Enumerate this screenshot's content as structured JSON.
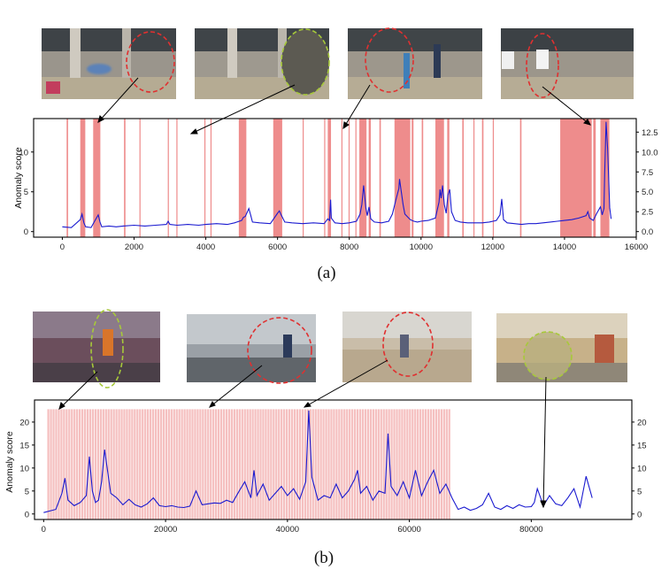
{
  "chart_data": [
    {
      "type": "line",
      "caption": "(a)",
      "ylabel": "Anomaly score",
      "xlim": [
        -800,
        16000
      ],
      "ylim": [
        -0.7,
        14.2
      ],
      "x_ticks": [
        0,
        2000,
        4000,
        6000,
        8000,
        10000,
        12000,
        14000,
        16000
      ],
      "y_ticks_left": [
        0,
        5,
        10
      ],
      "y_ticks_right": [
        "0.0",
        "2.5",
        "5.0",
        "7.5",
        "10.0",
        "12.5"
      ],
      "highlight_color": "#ee8c8c",
      "line_color": "#1a1ad0",
      "anomaly_intervals": [
        [
          120,
          160
        ],
        [
          500,
          640
        ],
        [
          860,
          1060
        ],
        [
          1720,
          1760
        ],
        [
          2150,
          2180
        ],
        [
          2940,
          2970
        ],
        [
          3180,
          3210
        ],
        [
          3960,
          3990
        ],
        [
          4130,
          4160
        ],
        [
          4920,
          5130
        ],
        [
          5880,
          6130
        ],
        [
          6700,
          6730
        ],
        [
          7300,
          7330
        ],
        [
          7400,
          7490
        ],
        [
          7780,
          7810
        ],
        [
          7980,
          8010
        ],
        [
          8170,
          8200
        ],
        [
          8280,
          8480
        ],
        [
          8540,
          8600
        ],
        [
          8840,
          8880
        ],
        [
          9260,
          9700
        ],
        [
          9740,
          9790
        ],
        [
          10020,
          10060
        ],
        [
          10400,
          10640
        ],
        [
          10730,
          10790
        ],
        [
          11150,
          11190
        ],
        [
          11460,
          11490
        ],
        [
          11700,
          11740
        ],
        [
          12000,
          12030
        ],
        [
          12760,
          12800
        ],
        [
          13880,
          14760
        ],
        [
          14800,
          14870
        ],
        [
          15000,
          15250
        ]
      ],
      "series": [
        {
          "x": [
            0,
            250,
            500,
            550,
            600,
            650,
            800,
            900,
            1000,
            1050,
            1100,
            1300,
            1500,
            1700,
            2000,
            2300,
            2600,
            2900,
            2950,
            3000,
            3200,
            3500,
            3800,
            4000,
            4300,
            4600,
            4800,
            5000,
            5050,
            5100,
            5200,
            5250,
            5300,
            5500,
            5800,
            6000,
            6050,
            6100,
            6200,
            6400,
            6700,
            7000,
            7300,
            7400,
            7450,
            7480,
            7500,
            7600,
            7800,
            8000,
            8200,
            8300,
            8350,
            8400,
            8430,
            8460,
            8500,
            8550,
            8600,
            8700,
            8900,
            9100,
            9200,
            9300,
            9380,
            9400,
            9440,
            9500,
            9550,
            9700,
            9800,
            9900,
            10000,
            10200,
            10400,
            10500,
            10530,
            10560,
            10600,
            10650,
            10700,
            10750,
            10800,
            10850,
            10950,
            11100,
            11300,
            11500,
            11700,
            11900,
            12100,
            12200,
            12250,
            12300,
            12400,
            12600,
            12800,
            13000,
            13200,
            13400,
            13600,
            13800,
            14000,
            14200,
            14400,
            14600,
            14650,
            14700,
            14800,
            14900,
            15000,
            15050,
            15100,
            15120,
            15160,
            15200,
            15260,
            15300
          ],
          "y": [
            0.6,
            0.5,
            1.5,
            2.2,
            1.1,
            0.6,
            0.5,
            1.3,
            2.1,
            1.2,
            0.6,
            0.7,
            0.6,
            0.7,
            0.8,
            0.7,
            0.8,
            0.9,
            1.3,
            0.9,
            0.8,
            0.9,
            0.8,
            0.9,
            1.0,
            0.9,
            1.1,
            1.4,
            1.8,
            1.9,
            2.9,
            2.1,
            1.2,
            1.1,
            1.0,
            2.3,
            2.6,
            2.1,
            1.2,
            1.1,
            1.0,
            1.1,
            1.0,
            1.6,
            1.4,
            4.0,
            1.7,
            1.1,
            1.0,
            1.1,
            1.3,
            2.2,
            3.4,
            5.8,
            4.5,
            3.0,
            2.0,
            3.1,
            1.6,
            1.2,
            1.1,
            1.3,
            2.2,
            4.0,
            5.4,
            6.6,
            5.3,
            3.4,
            2.2,
            1.5,
            1.3,
            1.2,
            1.3,
            1.4,
            1.7,
            3.7,
            5.3,
            4.2,
            5.8,
            3.4,
            2.3,
            4.6,
            5.3,
            2.5,
            1.4,
            1.2,
            1.1,
            1.1,
            1.1,
            1.2,
            1.4,
            2.1,
            4.1,
            1.5,
            1.1,
            1.0,
            0.9,
            1.0,
            1.0,
            1.1,
            1.2,
            1.3,
            1.4,
            1.5,
            1.7,
            2.0,
            2.5,
            1.7,
            1.4,
            2.3,
            3.1,
            2.1,
            2.9,
            7.2,
            13.8,
            10.5,
            3.0,
            1.6
          ]
        }
      ]
    },
    {
      "type": "line",
      "caption": "(b)",
      "ylabel": "Anomaly score",
      "xlim": [
        -1500,
        96500
      ],
      "ylim": [
        -1.2,
        24.8
      ],
      "x_ticks": [
        0,
        20000,
        40000,
        60000,
        80000
      ],
      "y_ticks_left": [
        0,
        5,
        10,
        15,
        20
      ],
      "y_ticks_right": [
        0,
        5,
        10,
        15,
        20
      ],
      "highlight_color": "#f5c0c0",
      "line_color": "#1a1ad0",
      "highlight_top_value": 22.8,
      "highlight_range": [
        600,
        66800
      ],
      "series": [
        {
          "x": [
            0,
            2000,
            3000,
            3500,
            4000,
            5000,
            6000,
            7000,
            7500,
            8000,
            8500,
            9000,
            9500,
            10000,
            11000,
            12000,
            13000,
            14000,
            15000,
            16000,
            17000,
            18000,
            19000,
            20000,
            21000,
            22000,
            23000,
            24000,
            25000,
            26000,
            27000,
            28000,
            29000,
            30000,
            31000,
            32000,
            33000,
            34000,
            34500,
            35000,
            36000,
            37000,
            38000,
            39000,
            40000,
            41000,
            42000,
            43000,
            43500,
            44000,
            45000,
            46000,
            47000,
            48000,
            49000,
            50000,
            51000,
            51500,
            52000,
            53000,
            54000,
            55000,
            56000,
            56500,
            57000,
            58000,
            59000,
            60000,
            61000,
            62000,
            63000,
            64000,
            65000,
            66000,
            67000,
            68000,
            69000,
            70000,
            71000,
            72000,
            73000,
            74000,
            75000,
            76000,
            77000,
            78000,
            79000,
            80000,
            80500,
            81000,
            82000,
            83000,
            84000,
            85000,
            86000,
            87000,
            88000,
            89000,
            90000
          ],
          "y": [
            0.3,
            1.0,
            4.5,
            7.8,
            3.0,
            1.8,
            2.5,
            4.0,
            12.5,
            5.0,
            2.5,
            3.0,
            7.0,
            14.0,
            4.5,
            3.5,
            2.0,
            3.2,
            2.0,
            1.5,
            2.2,
            3.5,
            1.8,
            1.6,
            1.8,
            1.5,
            1.4,
            1.7,
            5.0,
            2.0,
            2.2,
            2.4,
            2.3,
            3.0,
            2.5,
            4.8,
            7.0,
            3.5,
            9.5,
            4.0,
            6.5,
            3.0,
            4.5,
            6.0,
            4.0,
            5.5,
            3.2,
            7.0,
            22.5,
            8.0,
            3.0,
            4.0,
            3.5,
            6.5,
            3.5,
            5.0,
            7.5,
            9.5,
            4.5,
            6.0,
            3.0,
            5.0,
            4.5,
            17.5,
            6.0,
            4.0,
            7.0,
            3.5,
            9.5,
            4.0,
            7.0,
            9.5,
            4.5,
            6.5,
            3.5,
            1.0,
            1.5,
            0.8,
            1.2,
            2.0,
            4.5,
            1.5,
            1.0,
            1.8,
            1.2,
            2.0,
            1.5,
            1.6,
            2.5,
            5.5,
            1.8,
            4.0,
            2.2,
            1.8,
            3.5,
            5.5,
            1.5,
            8.2,
            3.5
          ]
        }
      ]
    }
  ]
}
